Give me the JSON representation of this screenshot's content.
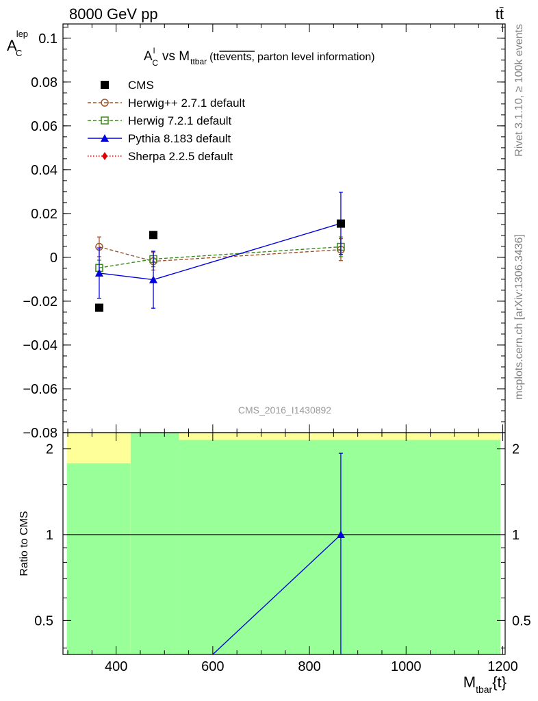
{
  "header": {
    "energy_label": "8000 GeV pp",
    "process_label": "tt̄",
    "side_label_rivet": "Rivet 3.1.10, ≥ 100k events",
    "side_label_site": "mcplots.cern.ch [arXiv:1306.3436]",
    "watermark": "CMS_2016_I1430892"
  },
  "plot_title": {
    "a": "A",
    "a_sup": "l",
    "a_sub": "C",
    "vs": "vs M",
    "m_sub": "ttbar",
    "paren_open": "(tt",
    "overline": "events,",
    "rest": "parton level information)"
  },
  "y_title": {
    "main": "A",
    "sup": "lep",
    "sub": "C"
  },
  "ratio_ylabel": "Ratio to CMS",
  "x_title": {
    "main": "M",
    "sub": "tbar",
    "suffix": "{t}"
  },
  "legend": [
    {
      "label": "CMS",
      "color": "#000000",
      "marker": "filled-square",
      "line": "none"
    },
    {
      "label": "Herwig++ 2.7.1 default",
      "color": "#a0522d",
      "marker": "open-circle",
      "line": "dashed"
    },
    {
      "label": "Herwig 7.2.1 default",
      "color": "#3a8a1a",
      "marker": "open-square",
      "line": "dashed"
    },
    {
      "label": "Pythia 8.183 default",
      "color": "#0000dd",
      "marker": "filled-triangle",
      "line": "solid"
    },
    {
      "label": "Sherpa 2.2.5 default",
      "color": "#dd0000",
      "marker": "filled-diamond",
      "line": "dotted"
    }
  ],
  "chart_data": {
    "type": "scatter",
    "x_axis": {
      "range": [
        290,
        1205
      ],
      "ticks": [
        400,
        600,
        800,
        1000,
        1200
      ]
    },
    "main_panel": {
      "y_range": [
        -0.08,
        0.1065
      ],
      "y_ticks": [
        -0.08,
        -0.06,
        -0.04,
        -0.02,
        0,
        0.02,
        0.04,
        0.06,
        0.08,
        0.1
      ],
      "y_tick_labels": [
        "−0.08",
        "−0.06",
        "−0.04",
        "−0.02",
        "0",
        "0.02",
        "0.04",
        "0.06",
        "0.08",
        "0.1"
      ],
      "series": [
        {
          "name": "CMS",
          "x": [
            365,
            477,
            865
          ],
          "y": [
            -0.023,
            0.0102,
            0.0154
          ],
          "yerr": [
            0,
            0,
            0
          ]
        },
        {
          "name": "Herwig++ 2.7.1 default",
          "x": [
            365,
            477,
            865
          ],
          "y": [
            0.0048,
            -0.0018,
            0.0035
          ],
          "yerr": [
            0.0045,
            0.004,
            0.005
          ]
        },
        {
          "name": "Herwig 7.2.1 default",
          "x": [
            365,
            477,
            865
          ],
          "y": [
            -0.0048,
            -0.0008,
            0.0048
          ],
          "yerr": [
            0.0035,
            0.0035,
            0.0045
          ]
        },
        {
          "name": "Pythia 8.183 default",
          "x": [
            365,
            477,
            865
          ],
          "y": [
            -0.0072,
            -0.0102,
            0.0155
          ],
          "yerr": [
            0.0115,
            0.013,
            0.0142
          ]
        }
      ]
    },
    "ratio_panel": {
      "y_range": [
        0.38,
        2.28
      ],
      "log_scale": true,
      "y_ticks": [
        0.5,
        1,
        2
      ],
      "y_tick_labels": [
        "0.5",
        "1",
        "2"
      ],
      "bands": [
        {
          "x": [
            298,
            430
          ],
          "yellow": [
            0.38,
            2.28
          ],
          "green": [
            0.38,
            1.78
          ]
        },
        {
          "x": [
            430,
            530
          ],
          "yellow": [
            0.38,
            2.28
          ],
          "green": [
            0.38,
            2.28
          ]
        },
        {
          "x": [
            530,
            1195
          ],
          "yellow": [
            0.38,
            2.28
          ],
          "green": [
            0.38,
            2.15
          ]
        }
      ],
      "series": [
        {
          "name": "Pythia 8.183 default",
          "x": [
            600,
            865
          ],
          "y": [
            0.38,
            1.0
          ],
          "yerr_up": [
            0,
            0.93
          ],
          "yerr_down": [
            0,
            0.62
          ]
        }
      ]
    }
  }
}
